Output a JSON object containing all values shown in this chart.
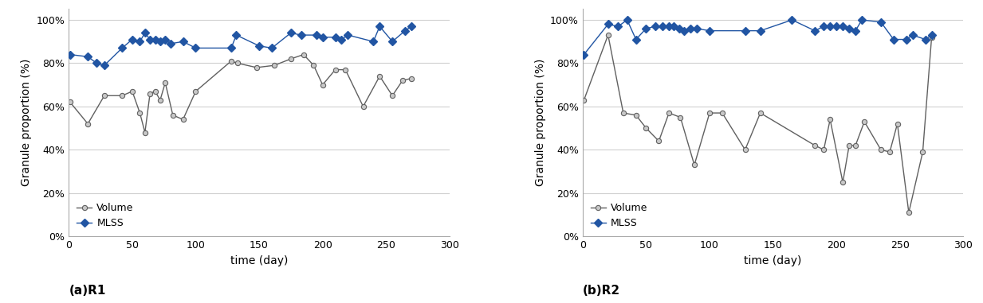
{
  "r1_mlss_x": [
    1,
    15,
    22,
    28,
    42,
    50,
    56,
    60,
    64,
    68,
    72,
    76,
    80,
    90,
    100,
    128,
    132,
    150,
    160,
    175,
    183,
    195,
    200,
    210,
    215,
    220,
    240,
    245,
    255,
    265,
    270
  ],
  "r1_mlss_y": [
    0.84,
    0.83,
    0.8,
    0.79,
    0.87,
    0.91,
    0.9,
    0.94,
    0.91,
    0.91,
    0.9,
    0.91,
    0.89,
    0.9,
    0.87,
    0.87,
    0.93,
    0.88,
    0.87,
    0.94,
    0.93,
    0.93,
    0.92,
    0.92,
    0.91,
    0.93,
    0.9,
    0.97,
    0.9,
    0.95,
    0.97
  ],
  "r1_vol_x": [
    1,
    15,
    28,
    42,
    50,
    56,
    60,
    64,
    68,
    72,
    76,
    82,
    90,
    100,
    128,
    133,
    148,
    162,
    175,
    185,
    193,
    200,
    210,
    218,
    232,
    245,
    255,
    263,
    270
  ],
  "r1_vol_y": [
    0.62,
    0.52,
    0.65,
    0.65,
    0.67,
    0.57,
    0.48,
    0.66,
    0.67,
    0.63,
    0.71,
    0.56,
    0.54,
    0.67,
    0.81,
    0.8,
    0.78,
    0.79,
    0.82,
    0.84,
    0.79,
    0.7,
    0.77,
    0.77,
    0.6,
    0.74,
    0.65,
    0.72,
    0.73
  ],
  "r2_mlss_x": [
    1,
    20,
    28,
    35,
    42,
    50,
    57,
    63,
    68,
    72,
    76,
    80,
    85,
    90,
    100,
    128,
    140,
    165,
    183,
    190,
    195,
    200,
    205,
    210,
    215,
    220,
    235,
    245,
    255,
    260,
    270,
    275
  ],
  "r2_mlss_y": [
    0.84,
    0.98,
    0.97,
    1.0,
    0.91,
    0.96,
    0.97,
    0.97,
    0.97,
    0.97,
    0.96,
    0.95,
    0.96,
    0.96,
    0.95,
    0.95,
    0.95,
    1.0,
    0.95,
    0.97,
    0.97,
    0.97,
    0.97,
    0.96,
    0.95,
    1.0,
    0.99,
    0.91,
    0.91,
    0.93,
    0.91,
    0.93
  ],
  "r2_vol_x": [
    1,
    20,
    32,
    42,
    50,
    60,
    68,
    77,
    88,
    100,
    110,
    128,
    140,
    183,
    190,
    195,
    205,
    210,
    215,
    222,
    235,
    242,
    248,
    257,
    268,
    275
  ],
  "r2_vol_y": [
    0.63,
    0.93,
    0.57,
    0.56,
    0.5,
    0.44,
    0.57,
    0.55,
    0.33,
    0.57,
    0.57,
    0.4,
    0.57,
    0.42,
    0.4,
    0.54,
    0.25,
    0.42,
    0.42,
    0.53,
    0.4,
    0.39,
    0.52,
    0.11,
    0.39,
    0.92
  ],
  "mlss_color": "#2155a3",
  "vol_color": "#606060",
  "vol_face_color": "#c8c8c8",
  "mlss_label": "MLSS",
  "vol_label": "Volume",
  "xlabel": "time (day)",
  "ylabel": "Granule proportion (%)",
  "label_r1": "(a)R1",
  "label_r2": "(b)R2",
  "xlim": [
    0,
    300
  ],
  "ylim": [
    0.0,
    1.05
  ],
  "yticks": [
    0.0,
    0.2,
    0.4,
    0.6,
    0.8,
    1.0
  ],
  "xticks": [
    0,
    50,
    100,
    150,
    200,
    250,
    300
  ]
}
